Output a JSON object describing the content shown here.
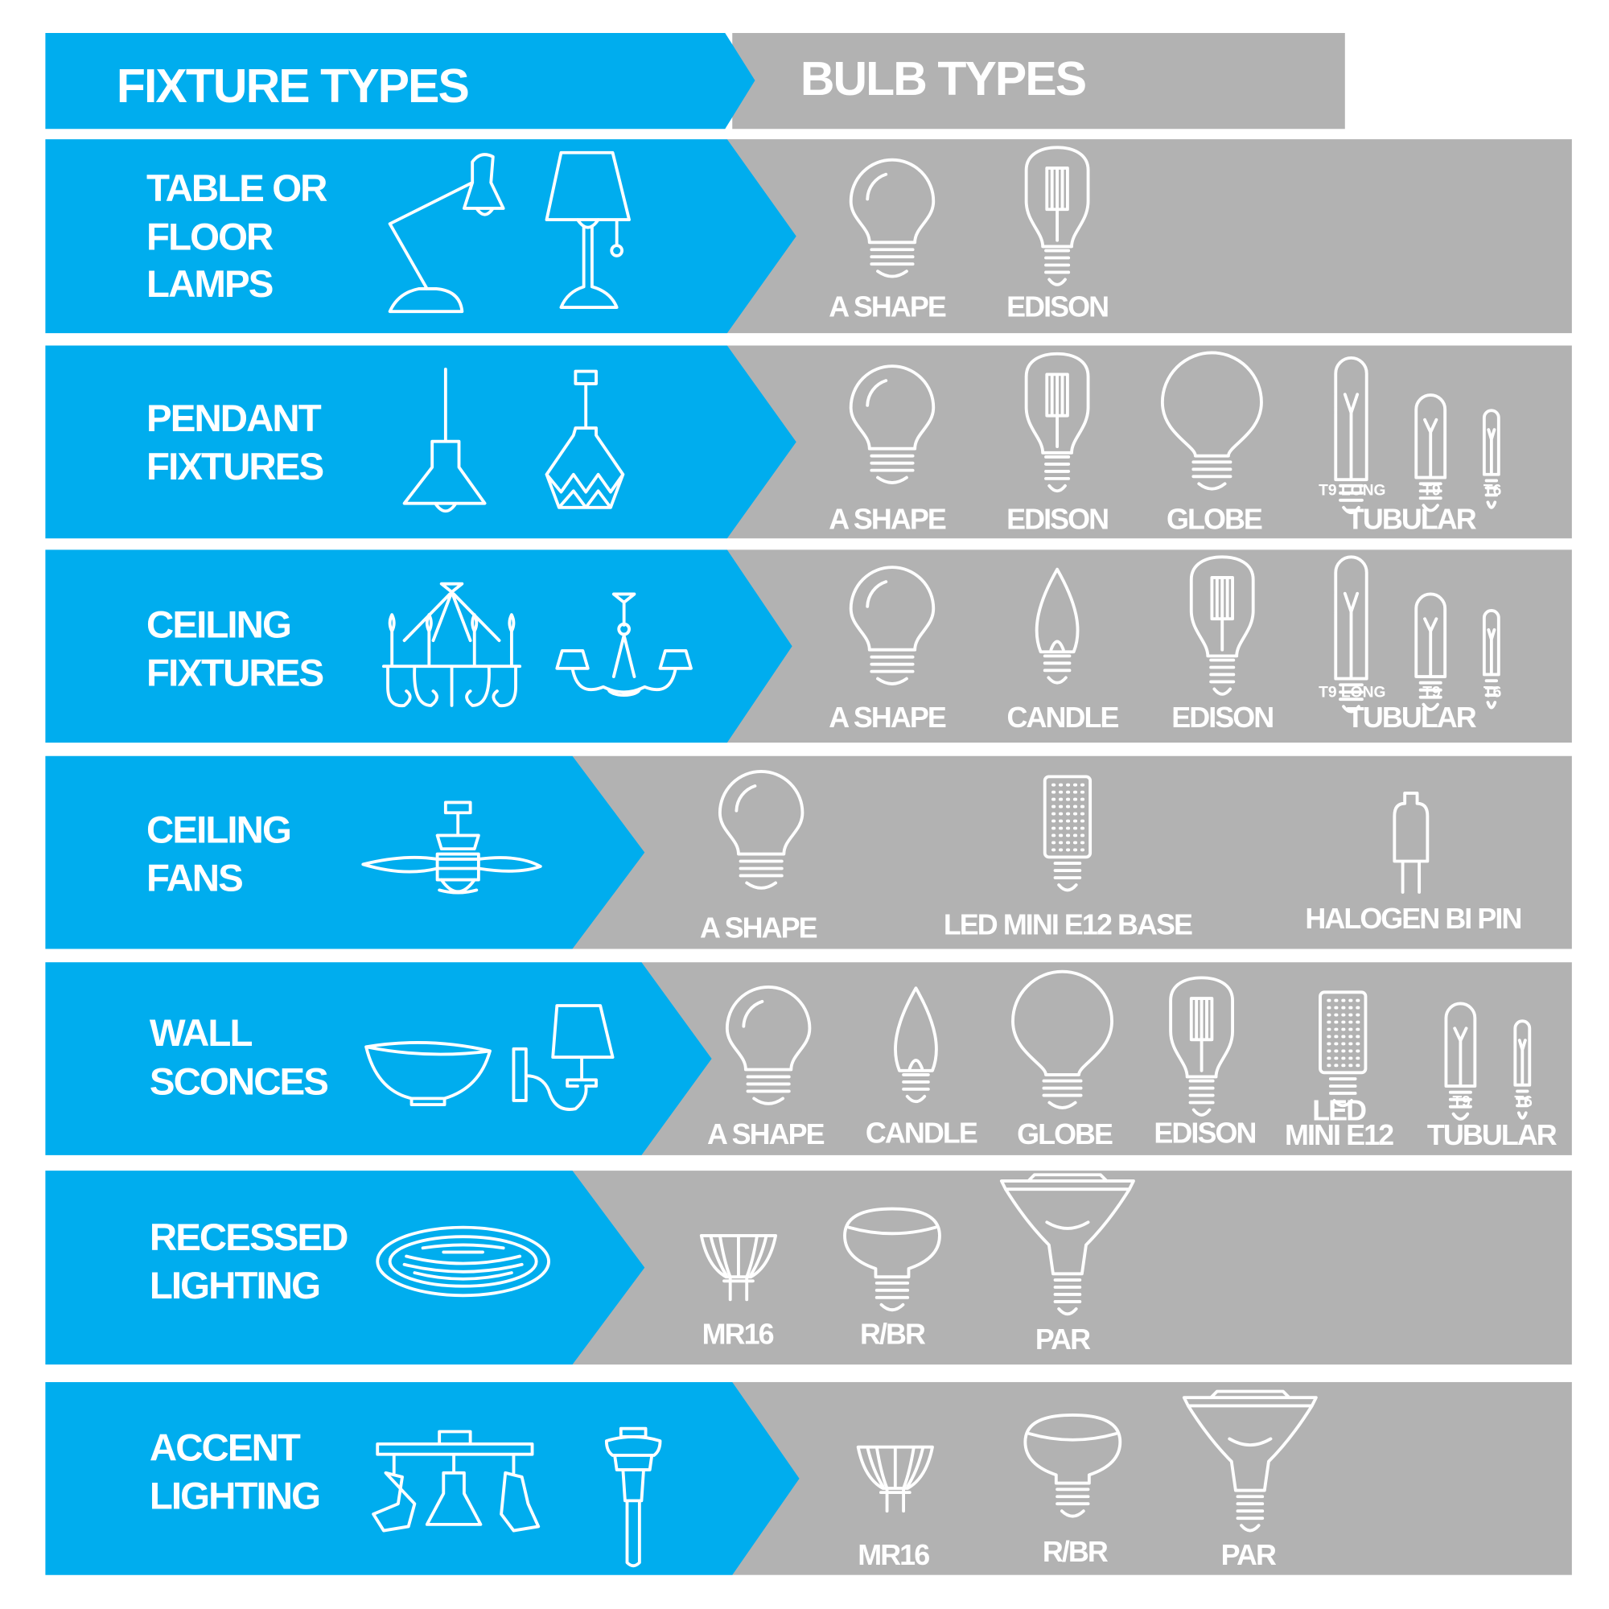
{
  "header": {
    "fixture_title": "FIXTURE TYPES",
    "bulb_title": "BULB TYPES"
  },
  "colors": {
    "fixture_blue": "#00ADEE",
    "bulb_gray": "#B2B2B2",
    "text": "#FFFFFF"
  },
  "rows": [
    {
      "fixture_lines": [
        "TABLE OR",
        "FLOOR",
        "LAMPS"
      ],
      "fixture_icons": [
        "desk-lamp-icon",
        "table-lamp-icon"
      ],
      "bulbs": [
        {
          "label": "A SHAPE",
          "icon": "a-shape-bulb-icon"
        },
        {
          "label": "EDISON",
          "icon": "edison-bulb-icon"
        }
      ]
    },
    {
      "fixture_lines": [
        "PENDANT",
        "FIXTURES"
      ],
      "fixture_icons": [
        "cone-pendant-icon",
        "geometric-pendant-icon"
      ],
      "bulbs": [
        {
          "label": "A SHAPE",
          "icon": "a-shape-bulb-icon"
        },
        {
          "label": "EDISON",
          "icon": "edison-bulb-icon"
        },
        {
          "label": "GLOBE",
          "icon": "globe-bulb-icon"
        }
      ],
      "tubular": {
        "label": "TUBULAR",
        "sizes": [
          "T9 LONG",
          "T9",
          "T6"
        ]
      }
    },
    {
      "fixture_lines": [
        "CEILING",
        "FIXTURES"
      ],
      "fixture_icons": [
        "chandelier-icon",
        "small-chandelier-icon"
      ],
      "bulbs": [
        {
          "label": "A SHAPE",
          "icon": "a-shape-bulb-icon"
        },
        {
          "label": "CANDLE",
          "icon": "candle-bulb-icon"
        },
        {
          "label": "EDISON",
          "icon": "edison-bulb-icon"
        }
      ],
      "tubular": {
        "label": "TUBULAR",
        "sizes": [
          "T9 LONG",
          "T9",
          "T6"
        ]
      }
    },
    {
      "fixture_lines": [
        "CEILING",
        "FANS"
      ],
      "fixture_icons": [
        "ceiling-fan-icon"
      ],
      "bulbs": [
        {
          "label": "A SHAPE",
          "icon": "a-shape-bulb-icon"
        },
        {
          "label": "LED MINI E12 BASE",
          "icon": "led-corn-bulb-icon"
        },
        {
          "label": "HALOGEN BI PIN",
          "icon": "halogen-bipin-bulb-icon"
        }
      ]
    },
    {
      "fixture_lines": [
        "WALL",
        "SCONCES"
      ],
      "fixture_icons": [
        "bowl-sconce-icon",
        "shade-sconce-icon"
      ],
      "bulbs": [
        {
          "label": "A SHAPE",
          "icon": "a-shape-bulb-icon"
        },
        {
          "label": "CANDLE",
          "icon": "candle-bulb-icon"
        },
        {
          "label": "GLOBE",
          "icon": "globe-bulb-icon"
        },
        {
          "label": "EDISON",
          "icon": "edison-bulb-icon"
        },
        {
          "label": "LED\nMINI E12",
          "icon": "led-corn-bulb-icon"
        }
      ],
      "tubular": {
        "label": "TUBULAR",
        "sizes": [
          "T9",
          "T6"
        ]
      }
    },
    {
      "fixture_lines": [
        "RECESSED",
        "LIGHTING"
      ],
      "fixture_icons": [
        "recessed-light-icon"
      ],
      "bulbs": [
        {
          "label": "MR16",
          "icon": "mr16-bulb-icon"
        },
        {
          "label": "R/BR",
          "icon": "rbr-bulb-icon"
        },
        {
          "label": "PAR",
          "icon": "par-bulb-icon"
        }
      ]
    },
    {
      "fixture_lines": [
        "ACCENT",
        "LIGHTING"
      ],
      "fixture_icons": [
        "track-light-icon",
        "path-light-icon"
      ],
      "bulbs": [
        {
          "label": "MR16",
          "icon": "mr16-bulb-icon"
        },
        {
          "label": "R/BR",
          "icon": "rbr-bulb-icon"
        },
        {
          "label": "PAR",
          "icon": "par-bulb-icon"
        }
      ]
    }
  ]
}
